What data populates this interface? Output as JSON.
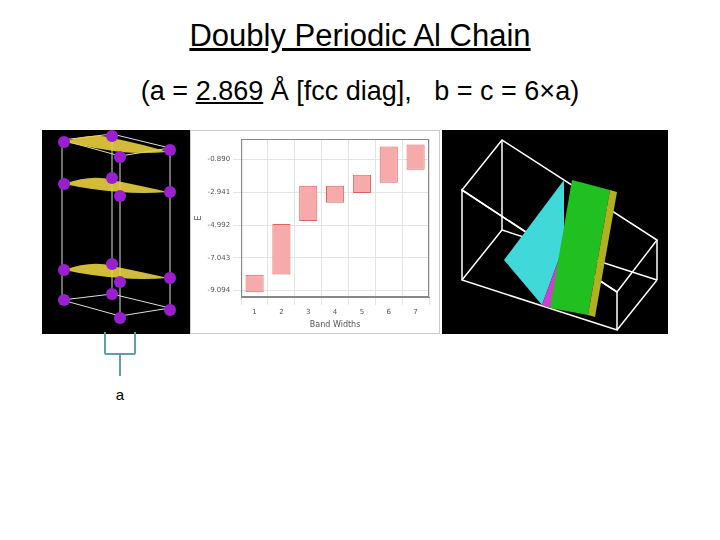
{
  "slide": {
    "title": "Doubly Periodic Al Chain",
    "subtitle": {
      "before": "(a = ",
      "underlined": "2.869",
      "after": " Å [fcc diag],   b = c = 6×a)"
    },
    "image_label": "a"
  },
  "chart_data": {
    "type": "bar",
    "x_label": "Band Widths",
    "y_label": "E",
    "categories": [
      "1",
      "2",
      "3",
      "4",
      "5",
      "6",
      "7"
    ],
    "values": [
      [
        -9.2,
        -8.1
      ],
      [
        -8.09,
        -4.93
      ],
      [
        -4.74,
        -2.53
      ],
      [
        -3.6,
        -2.53
      ],
      [
        -2.98,
        -1.84
      ],
      [
        -2.34,
        -0.07
      ],
      [
        -1.52,
        0.06
      ]
    ],
    "color": "#f7aaaa",
    "ylim": [
      -9.5,
      0.4
    ],
    "yticks": [
      {
        "value": -9.094,
        "label": "-9.094"
      },
      {
        "value": -7.043,
        "label": "-7.043"
      },
      {
        "value": -4.992,
        "label": "-4.992"
      },
      {
        "value": -2.941,
        "label": "-2.941"
      },
      {
        "value": -0.89,
        "label": "-0.890"
      }
    ],
    "grid": true
  }
}
